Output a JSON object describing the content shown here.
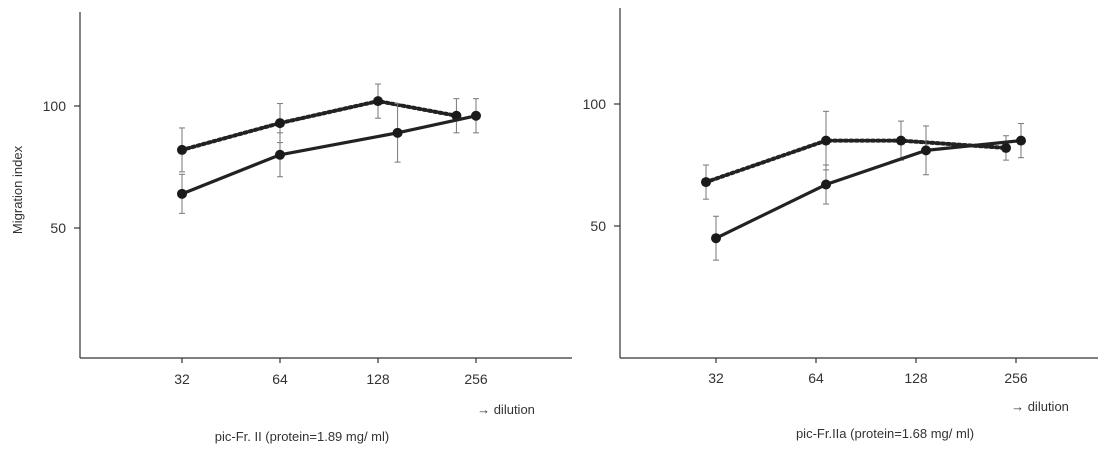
{
  "chart_data": [
    {
      "type": "line",
      "title": "",
      "caption": "pic-Fr. II (protein=1.89 mg/ ml)",
      "xlabel": "→ dilution",
      "ylabel": "Migration index",
      "categories": [
        "32",
        "64",
        "128",
        "256"
      ],
      "ylim": [
        0,
        140
      ],
      "yticks": [
        "50",
        "100"
      ],
      "ytick_values": [
        50,
        100
      ],
      "grid": false,
      "series": [
        {
          "style": "dotted",
          "values": [
            82,
            93,
            102,
            96
          ],
          "errors": [
            9,
            8,
            7,
            7
          ],
          "x_offsets": [
            0,
            0,
            0,
            -0.2
          ]
        },
        {
          "style": "solid",
          "values": [
            64,
            80,
            89,
            96
          ],
          "errors": [
            8,
            9,
            12,
            7
          ],
          "x_offsets": [
            0,
            0,
            0.2,
            0
          ]
        }
      ]
    },
    {
      "type": "line",
      "title": "",
      "caption": "pic-Fr.IIa (protein=1.68 mg/ ml)",
      "xlabel": "→ dilution",
      "ylabel": "",
      "categories": [
        "32",
        "64",
        "128",
        "256"
      ],
      "ylim": [
        0,
        140
      ],
      "yticks": [
        "50",
        "100"
      ],
      "ytick_values": [
        50,
        100
      ],
      "grid": false,
      "series": [
        {
          "style": "dotted",
          "values": [
            68,
            85,
            85,
            82
          ],
          "errors": [
            7,
            12,
            8,
            5
          ],
          "x_offsets": [
            -0.1,
            0.1,
            -0.15,
            -0.1
          ]
        },
        {
          "style": "solid",
          "values": [
            45,
            67,
            81,
            85
          ],
          "errors": [
            9,
            8,
            10,
            7
          ],
          "x_offsets": [
            0,
            0.1,
            0.1,
            0.05
          ]
        }
      ]
    }
  ]
}
